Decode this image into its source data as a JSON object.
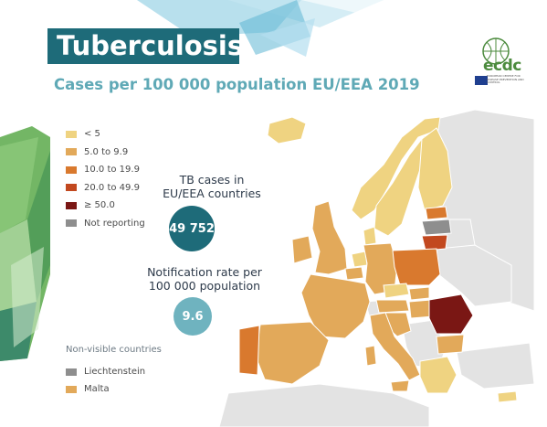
{
  "header": {
    "title": "Tuberculosis",
    "subtitle": "Cases per 100 000 population EU/EEA 2019"
  },
  "logo": {
    "text": "ecdc",
    "subtext": "EUROPEAN CENTRE FOR DISEASE PREVENTION AND CONTROL"
  },
  "legend": {
    "items": [
      {
        "label": "< 5",
        "color": "#efd381"
      },
      {
        "label": "5.0 to 9.9",
        "color": "#e2a95a"
      },
      {
        "label": "10.0 to 19.9",
        "color": "#d9792e"
      },
      {
        "label": "20.0 to 49.9",
        "color": "#c2481f"
      },
      {
        "label": "≥ 50.0",
        "color": "#7a1714"
      },
      {
        "label": "Not reporting",
        "color": "#8e8e8e"
      }
    ]
  },
  "stats": {
    "cases_heading": "TB cases in EU/EEA countries",
    "cases_value": "49 752",
    "cases_color": "#1e6b79",
    "rate_heading": "Notification rate per 100 000 population",
    "rate_value": "9.6",
    "rate_color": "#6fb3bf"
  },
  "non_visible": {
    "title": "Non-visible countries",
    "items": [
      {
        "label": "Liechtenstein",
        "color": "#8e8e8e"
      },
      {
        "label": "Malta",
        "color": "#e2a95a"
      }
    ]
  },
  "map_colors": {
    "no_data": "#e3e3e3",
    "border": "#ffffff"
  }
}
